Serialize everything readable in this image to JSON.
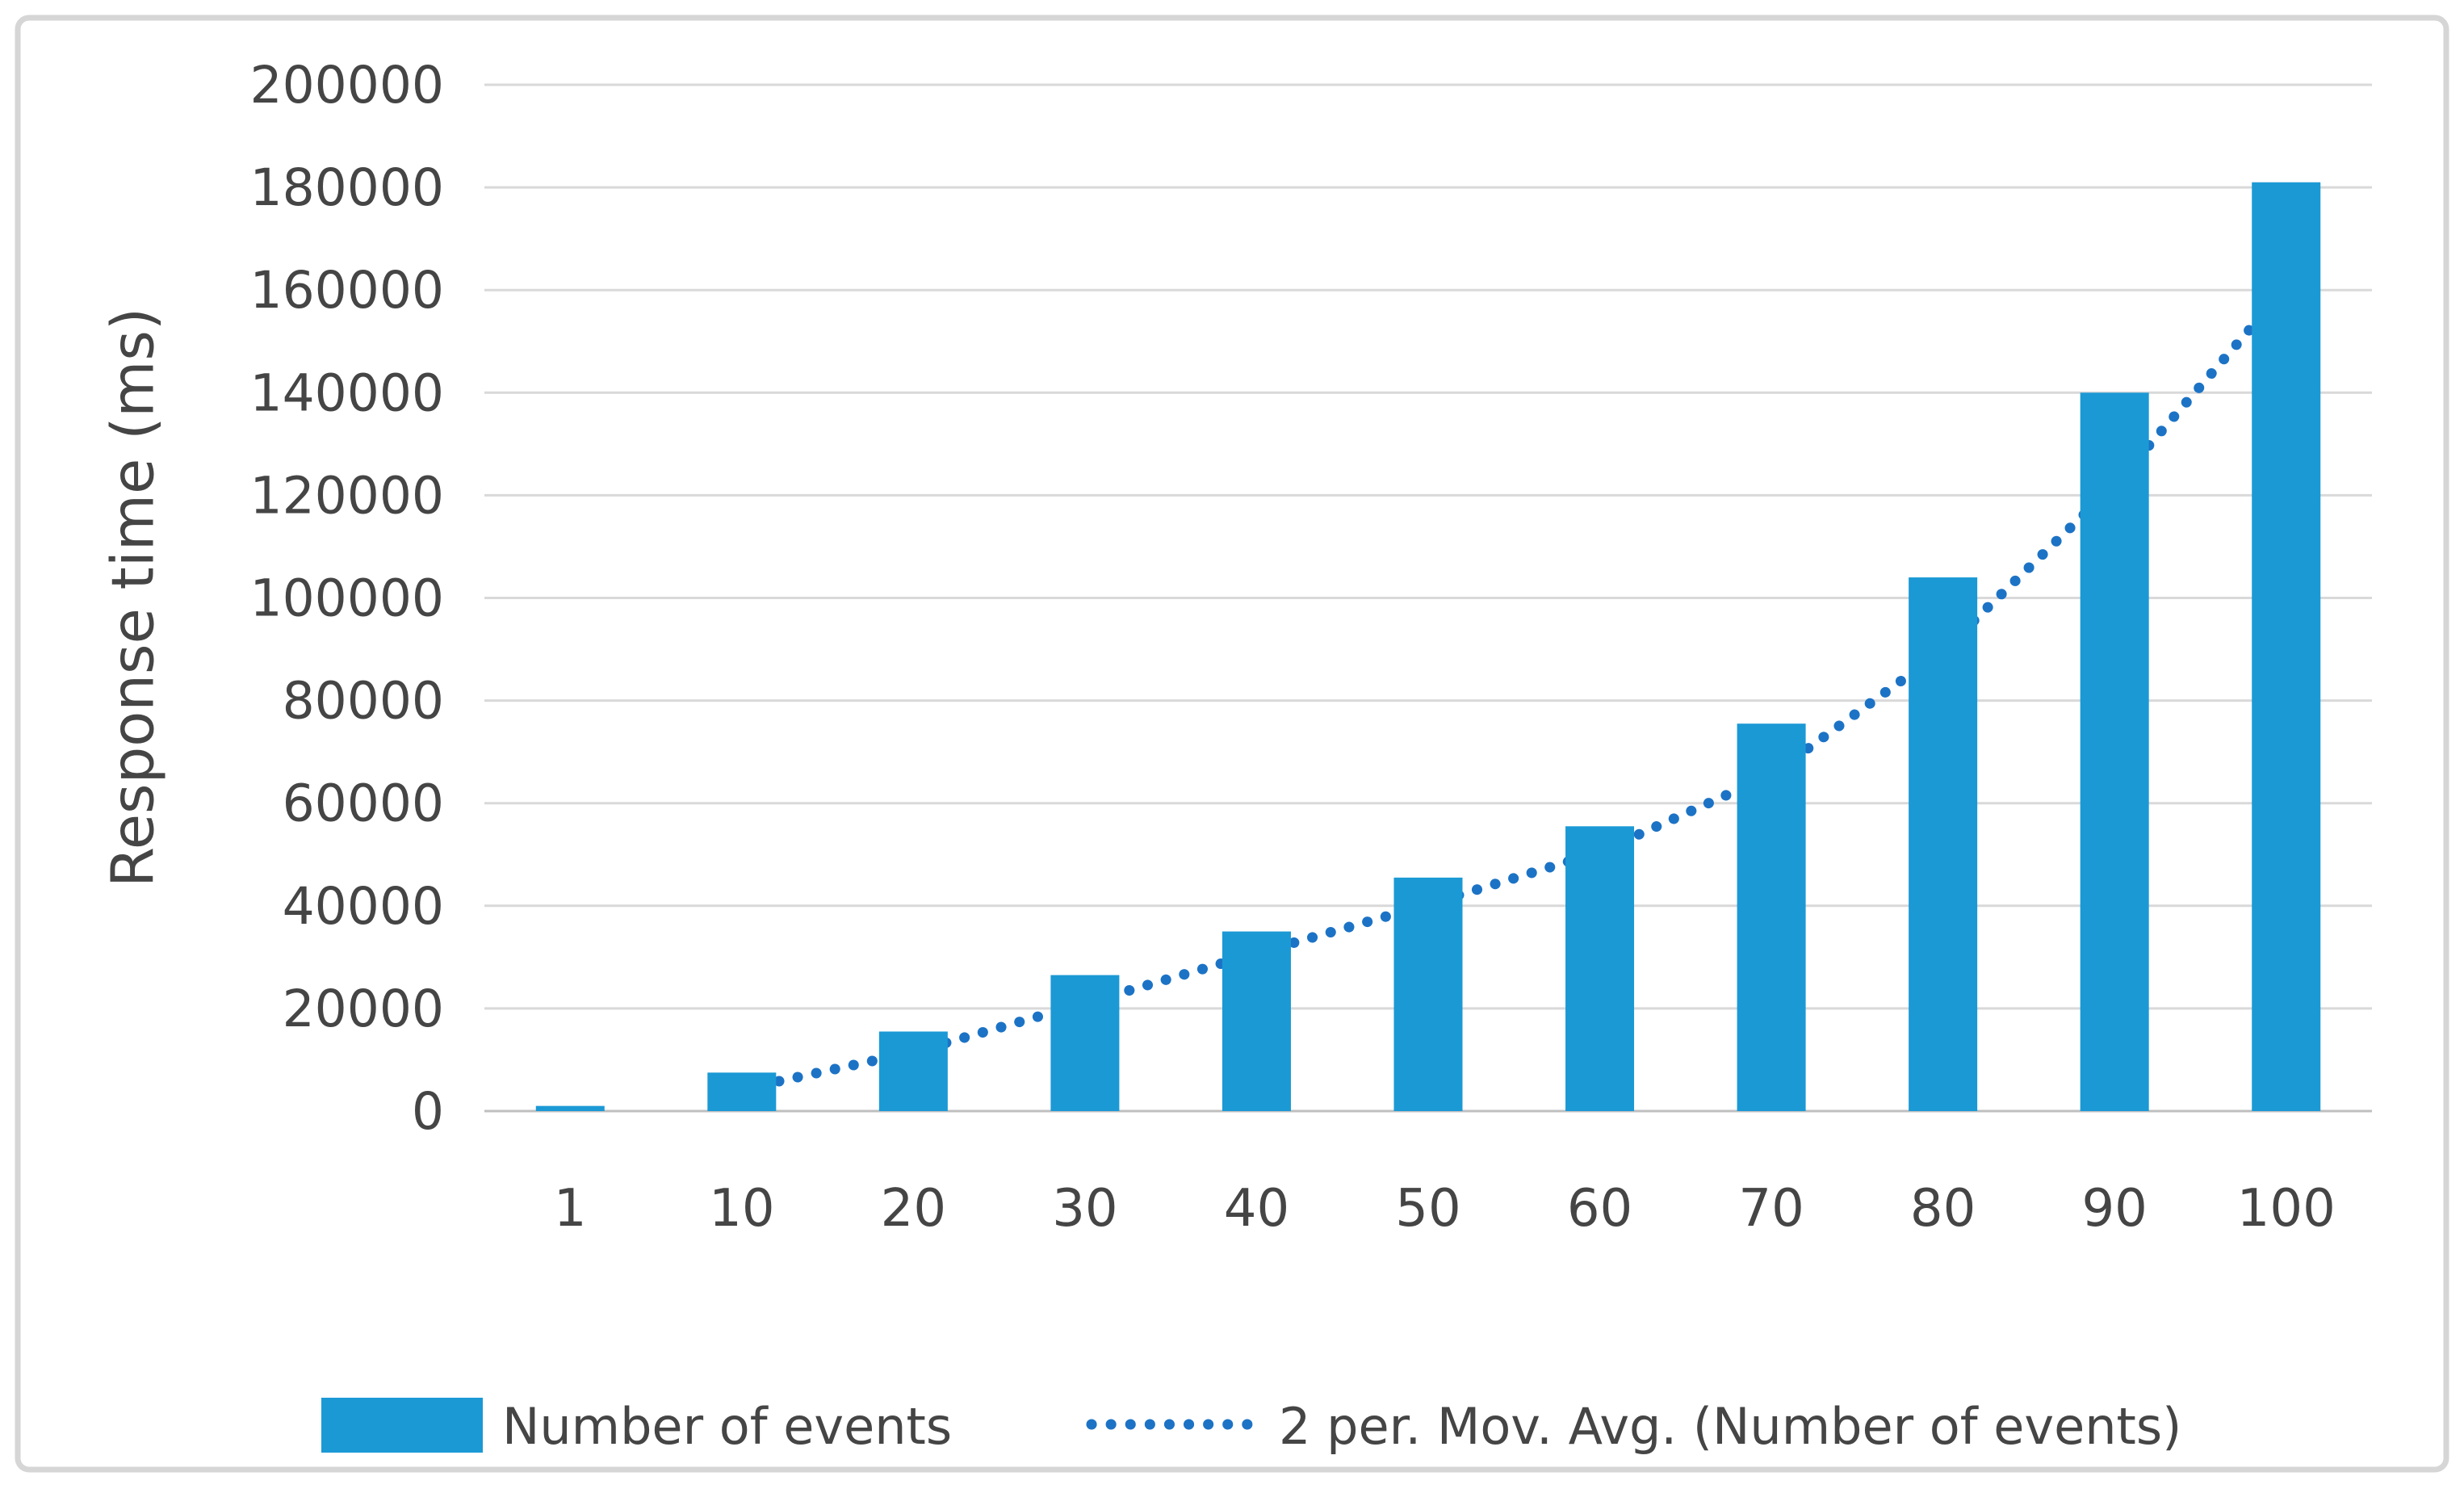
{
  "chart_data": {
    "type": "bar",
    "title": "",
    "categories": [
      "1",
      "10",
      "20",
      "30",
      "40",
      "50",
      "60",
      "70",
      "80",
      "90",
      "100"
    ],
    "series": [
      {
        "name": "Number of events",
        "type": "bar",
        "color": "#1B99D5",
        "values": [
          1000,
          7500,
          15500,
          26500,
          35000,
          45500,
          55500,
          75500,
          104000,
          140000,
          181000
        ]
      },
      {
        "name": "2 per. Mov. Avg. (Number of events)",
        "type": "dotted-line",
        "color": "#1C73C5",
        "values": [
          null,
          4250,
          11500,
          21000,
          30750,
          40250,
          50500,
          65500,
          89750,
          122000,
          160500
        ]
      }
    ],
    "xlabel": "",
    "ylabel": "Response time (ms)",
    "ylim": [
      0,
      200000
    ],
    "yticks": [
      0,
      20000,
      40000,
      60000,
      80000,
      100000,
      120000,
      140000,
      160000,
      180000,
      200000
    ],
    "grid": true,
    "legend_position": "bottom"
  },
  "colors": {
    "bar_fill": "#1B99D5",
    "trendline": "#1C73C5",
    "gridline": "#D9D9D9",
    "axis_line": "#BFBFBF",
    "text": "#454545",
    "frame_border": "#D6D6D6",
    "background": "#FFFFFF"
  }
}
